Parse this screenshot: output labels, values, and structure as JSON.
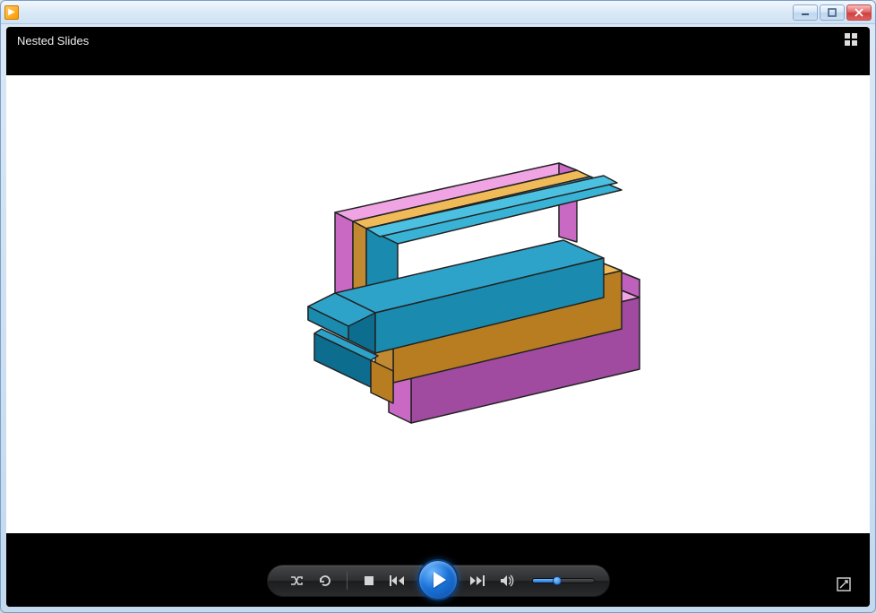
{
  "window": {
    "title_icon": "play",
    "buttons": {
      "minimize": "–",
      "maximize": "❐",
      "close": "✕"
    }
  },
  "header": {
    "title": "Nested Slides"
  },
  "viewport": {
    "background_color": "#ffffff",
    "model": {
      "type": "isometric-3d",
      "parts": [
        {
          "name": "outer-rail-left",
          "color_face": "#e78bd9",
          "color_side": "#9f3fa3",
          "color_top": "#e78bd9"
        },
        {
          "name": "outer-rail-right",
          "color_face": "#e78bd9",
          "color_side": "#9f3fa3",
          "color_top": "#e78bd9"
        },
        {
          "name": "inner-rail-left",
          "color_face": "#e0a838",
          "color_side": "#b87d20",
          "color_top": "#e0a838"
        },
        {
          "name": "inner-rail-right",
          "color_face": "#e0a838",
          "color_side": "#b87d20",
          "color_top": "#e0a838"
        },
        {
          "name": "center-plate",
          "color_face": "#2ea3c9",
          "color_side": "#0d6d8f",
          "color_top": "#2ea3c9"
        }
      ],
      "edge_color": "#222222"
    }
  },
  "controls": {
    "shuffle_icon": "shuffle",
    "repeat_icon": "repeat",
    "stop_icon": "stop",
    "prev_icon": "prev",
    "play_icon": "play",
    "next_icon": "next",
    "volume_icon": "volume",
    "volume_value": 40,
    "fullscreen_icon": "fullscreen"
  },
  "colors": {
    "accent_blue": "#1a72d8",
    "titlebar_gradient_top": "#f2f7fc",
    "titlebar_gradient_bottom": "#cfe2f3",
    "content_black": "#000000"
  }
}
